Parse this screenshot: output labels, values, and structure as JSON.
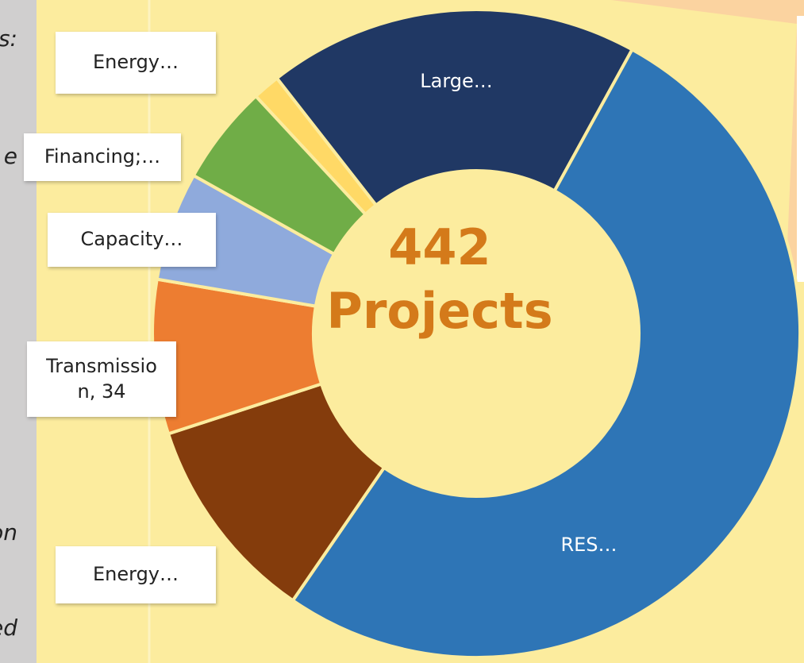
{
  "chart_data": {
    "type": "donut",
    "labels": [
      "Large…",
      "RES…",
      "Energy…",
      "Transmission, 34",
      "Capacity…",
      "Financing;…",
      "Energy…"
    ],
    "values": [
      82,
      228,
      46,
      34,
      24,
      22,
      6
    ],
    "colors": [
      "#203864",
      "#2e75b6",
      "#843c0c",
      "#ed7d31",
      "#8faadc",
      "#70ad47",
      "#ffd966"
    ],
    "center_text": [
      "442",
      "Projects"
    ]
  },
  "sidebar_text": [
    "s:",
    "e",
    "on",
    "ed"
  ]
}
